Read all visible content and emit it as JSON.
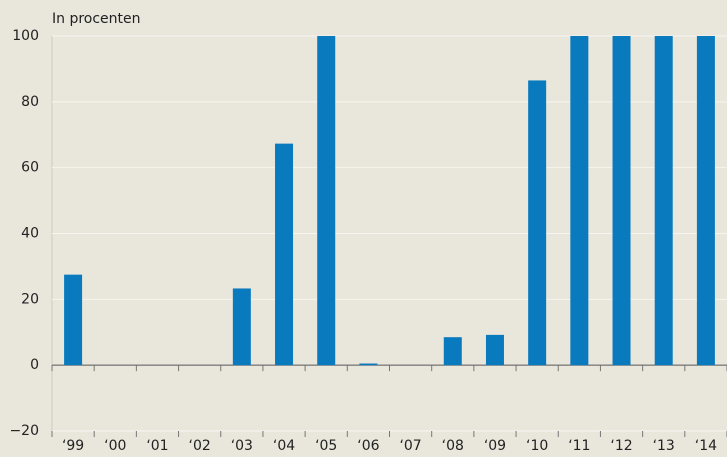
{
  "chart_data": {
    "type": "bar",
    "title": "In procenten",
    "categories": [
      "‘99",
      "‘00",
      "‘01",
      "‘02",
      "‘03",
      "‘04",
      "‘05",
      "‘06",
      "‘07",
      "‘08",
      "‘09",
      "‘10",
      "‘11",
      "‘12",
      "‘13",
      "‘14"
    ],
    "values": [
      27.5,
      0,
      0,
      0,
      23.3,
      67.3,
      100,
      0.5,
      0,
      8.5,
      9.2,
      86.5,
      100,
      100,
      100,
      100
    ],
    "color": "#0a7abf",
    "ylim": [
      -20,
      100
    ],
    "yticks": [
      {
        "value": -20,
        "label": "−20"
      },
      0,
      20,
      40,
      60,
      80,
      100
    ],
    "grid": true
  }
}
